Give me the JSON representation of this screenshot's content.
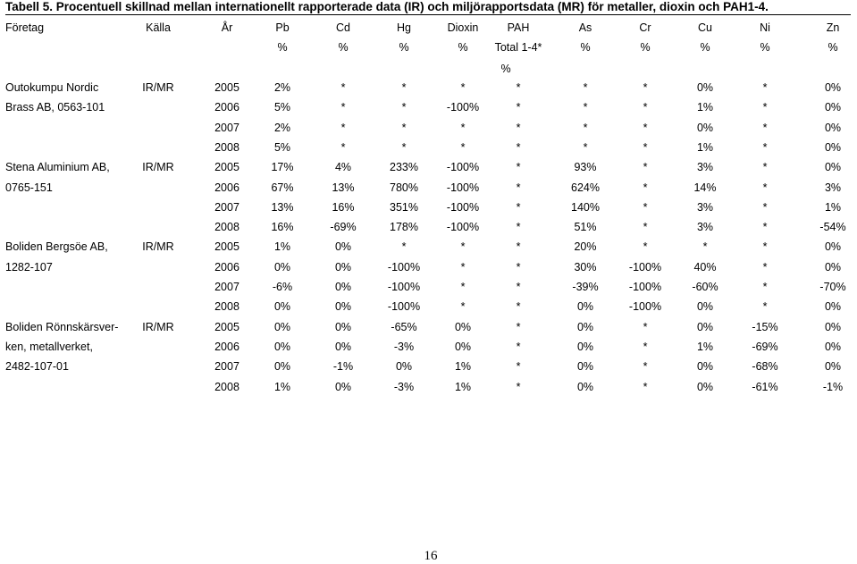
{
  "title": "Tabell 5. Procentuell skillnad mellan internationellt rapporterade data (IR) och miljörapportsdata (MR) för metaller, dioxin och PAH1-4.",
  "headers": [
    "Företag",
    "Källa",
    "År",
    "Pb",
    "Cd",
    "Hg",
    "Dioxin",
    "PAH",
    "As",
    "Cr",
    "Cu",
    "Ni",
    "Zn"
  ],
  "units": [
    "",
    "",
    "",
    "%",
    "%",
    "%",
    "%",
    "Total 1-4*",
    "%",
    "%",
    "%",
    "%",
    "%"
  ],
  "pah_unit_line2": "%",
  "companies": [
    {
      "lines": [
        "Outokumpu Nordic",
        "Brass AB, 0563-101"
      ],
      "source": "IR/MR"
    },
    {
      "lines": [
        "Stena Aluminium AB,",
        "0765-151"
      ],
      "source": "IR/MR"
    },
    {
      "lines": [
        "Boliden Bergsöe AB,",
        "1282-107"
      ],
      "source": "IR/MR"
    },
    {
      "lines": [
        "Boliden Rönnskärsver-",
        "ken, metallverket,",
        "2482-107-01"
      ],
      "source": "IR/MR"
    }
  ],
  "rows": [
    [
      "2005",
      "2%",
      "*",
      "*",
      "*",
      "*",
      "*",
      "*",
      "0%",
      "*",
      "0%"
    ],
    [
      "2006",
      "5%",
      "*",
      "*",
      "-100%",
      "*",
      "*",
      "*",
      "1%",
      "*",
      "0%"
    ],
    [
      "2007",
      "2%",
      "*",
      "*",
      "*",
      "*",
      "*",
      "*",
      "0%",
      "*",
      "0%"
    ],
    [
      "2008",
      "5%",
      "*",
      "*",
      "*",
      "*",
      "*",
      "*",
      "1%",
      "*",
      "0%"
    ],
    [
      "2005",
      "17%",
      "4%",
      "233%",
      "-100%",
      "*",
      "93%",
      "*",
      "3%",
      "*",
      "0%"
    ],
    [
      "2006",
      "67%",
      "13%",
      "780%",
      "-100%",
      "*",
      "624%",
      "*",
      "14%",
      "*",
      "3%"
    ],
    [
      "2007",
      "13%",
      "16%",
      "351%",
      "-100%",
      "*",
      "140%",
      "*",
      "3%",
      "*",
      "1%"
    ],
    [
      "2008",
      "16%",
      "-69%",
      "178%",
      "-100%",
      "*",
      "51%",
      "*",
      "3%",
      "*",
      "-54%"
    ],
    [
      "2005",
      "1%",
      "0%",
      "*",
      "*",
      "*",
      "20%",
      "*",
      "*",
      "*",
      "0%"
    ],
    [
      "2006",
      "0%",
      "0%",
      "-100%",
      "*",
      "*",
      "30%",
      "-100%",
      "40%",
      "*",
      "0%"
    ],
    [
      "2007",
      "-6%",
      "0%",
      "-100%",
      "*",
      "*",
      "-39%",
      "-100%",
      "-60%",
      "*",
      "-70%"
    ],
    [
      "2008",
      "0%",
      "0%",
      "-100%",
      "*",
      "*",
      "0%",
      "-100%",
      "0%",
      "*",
      "0%"
    ],
    [
      "2005",
      "0%",
      "0%",
      "-65%",
      "0%",
      "*",
      "0%",
      "*",
      "0%",
      "-15%",
      "0%"
    ],
    [
      "2006",
      "0%",
      "0%",
      "-3%",
      "0%",
      "*",
      "0%",
      "*",
      "1%",
      "-69%",
      "0%"
    ],
    [
      "2007",
      "0%",
      "-1%",
      "0%",
      "1%",
      "*",
      "0%",
      "*",
      "0%",
      "-68%",
      "0%"
    ],
    [
      "2008",
      "1%",
      "0%",
      "-3%",
      "1%",
      "*",
      "0%",
      "*",
      "0%",
      "-61%",
      "-1%"
    ]
  ],
  "page_number": "16"
}
